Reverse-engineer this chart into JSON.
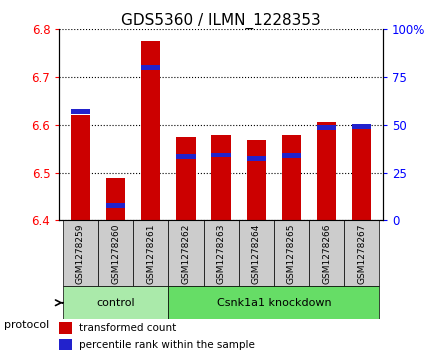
{
  "title": "GDS5360 / ILMN_1228353",
  "samples": [
    "GSM1278259",
    "GSM1278260",
    "GSM1278261",
    "GSM1278262",
    "GSM1278263",
    "GSM1278264",
    "GSM1278265",
    "GSM1278266",
    "GSM1278267"
  ],
  "transformed_counts": [
    6.62,
    6.488,
    6.775,
    6.575,
    6.578,
    6.568,
    6.578,
    6.605,
    6.602
  ],
  "percentile_tops": [
    6.628,
    6.432,
    6.72,
    6.534,
    6.537,
    6.529,
    6.536,
    6.595,
    6.597
  ],
  "ylim": [
    6.4,
    6.8
  ],
  "yticks": [
    6.4,
    6.5,
    6.6,
    6.7,
    6.8
  ],
  "right_ytick_labels": [
    "0",
    "25",
    "50",
    "75",
    "100%"
  ],
  "right_ytick_vals": [
    0,
    25,
    50,
    75,
    100
  ],
  "bar_color": "#CC0000",
  "blue_color": "#2222CC",
  "gray_box_color": "#CCCCCC",
  "protocol_groups": [
    {
      "label": "control",
      "start": 0,
      "end": 2,
      "color": "#AAEAAA"
    },
    {
      "label": "Csnk1a1 knockdown",
      "start": 3,
      "end": 8,
      "color": "#66DD66"
    }
  ],
  "protocol_label": "protocol",
  "legend_red": "transformed count",
  "legend_blue": "percentile rank within the sample",
  "bar_width": 0.55,
  "title_fontsize": 11,
  "tick_fontsize": 8.5,
  "sample_fontsize": 6.5
}
